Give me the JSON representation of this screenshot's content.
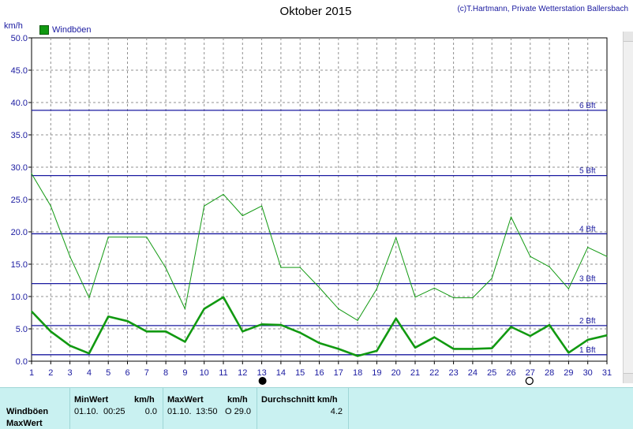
{
  "title": "Oktober 2015",
  "copyright": "(c)T.Hartmann, Private Wetterstation Ballersbach",
  "unit": "km/h",
  "legend": {
    "label": "Windböen",
    "color": "#119911"
  },
  "chart_data": {
    "type": "line",
    "title": "Oktober 2015",
    "ylabel": "km/h",
    "ylim": [
      0,
      50
    ],
    "yticks": [
      "0.0",
      "5.0",
      "10.0",
      "15.0",
      "20.0",
      "25.0",
      "30.0",
      "35.0",
      "40.0",
      "45.0",
      "50.0"
    ],
    "x": [
      1,
      2,
      3,
      4,
      5,
      6,
      7,
      8,
      9,
      10,
      11,
      12,
      13,
      14,
      15,
      16,
      17,
      18,
      19,
      20,
      21,
      22,
      23,
      24,
      25,
      26,
      27,
      28,
      29,
      30,
      31
    ],
    "grid": true,
    "series": [
      {
        "name": "Windböen",
        "style": "thin",
        "color": "#119911",
        "values": [
          29.0,
          24.0,
          16.2,
          9.8,
          19.2,
          19.2,
          19.2,
          14.4,
          8.1,
          24.0,
          25.8,
          22.5,
          24.0,
          14.5,
          14.5,
          11.4,
          8.1,
          6.3,
          11.2,
          19.1,
          9.9,
          11.3,
          9.8,
          9.8,
          12.8,
          22.3,
          16.2,
          14.6,
          11.2,
          17.6,
          16.2
        ]
      },
      {
        "style": "thick",
        "color": "#119911",
        "values": [
          7.7,
          4.6,
          2.4,
          1.2,
          6.9,
          6.2,
          4.6,
          4.6,
          3.0,
          8.1,
          9.9,
          4.6,
          5.7,
          5.6,
          4.4,
          2.8,
          1.9,
          0.8,
          1.6,
          6.6,
          2.1,
          3.7,
          1.9,
          1.9,
          2.0,
          5.3,
          3.9,
          5.6,
          1.3,
          3.3,
          4.0
        ]
      }
    ],
    "reference_lines": [
      {
        "label": "1 Bft",
        "value": 1.0
      },
      {
        "label": "2 Bft",
        "value": 5.5
      },
      {
        "label": "3 Bft",
        "value": 12.0
      },
      {
        "label": "4 Bft",
        "value": 19.7
      },
      {
        "label": "5 Bft",
        "value": 28.7
      },
      {
        "label": "6 Bft",
        "value": 38.8
      }
    ],
    "moon_markers": [
      {
        "day": 13,
        "phase": "new"
      },
      {
        "day": 27,
        "phase": "full"
      }
    ]
  },
  "stats": {
    "row_labels": [
      "Windböen",
      "MaxWert"
    ],
    "min": {
      "header": "MinWert",
      "unit": "km/h",
      "date": "01.10.",
      "time": "00:25",
      "value": "0.0"
    },
    "max": {
      "header": "MaxWert",
      "unit": "km/h",
      "date": "01.10.",
      "time": "13:50",
      "value": "O 29.0"
    },
    "avg": {
      "header": "Durchschnitt km/h",
      "value": "4.2"
    }
  }
}
